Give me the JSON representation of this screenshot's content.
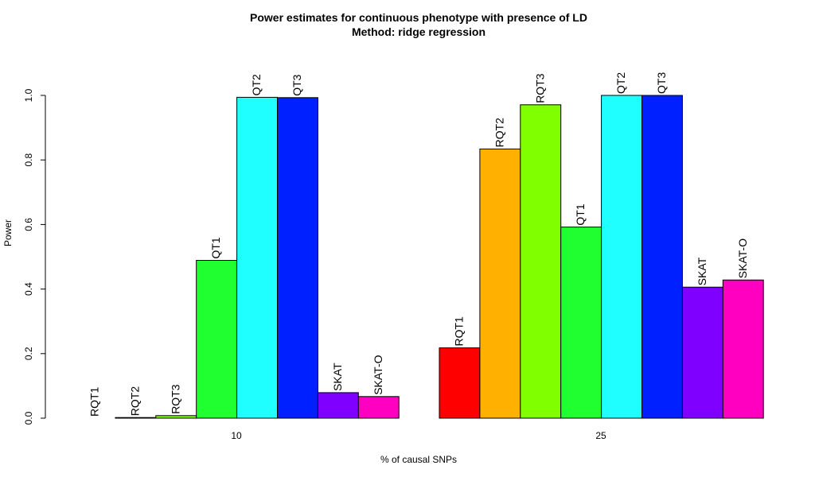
{
  "chart_data": {
    "type": "bar",
    "title": "Power estimates for continuous phenotype with presence of LD",
    "subtitle": "Method: ridge regression",
    "xlabel": "% of causal SNPs",
    "ylabel": "Power",
    "ylim": [
      0,
      1.0
    ],
    "yticks": [
      "0.0",
      "0.2",
      "0.4",
      "0.6",
      "0.8",
      "1.0"
    ],
    "grid": false,
    "categories": [
      "10",
      "25"
    ],
    "series": [
      {
        "name": "RQT1",
        "color": "#FF0000",
        "values": [
          0.0,
          0.218
        ]
      },
      {
        "name": "RQT2",
        "color": "#FFB000",
        "values": [
          0.002,
          0.834
        ]
      },
      {
        "name": "RQT3",
        "color": "#80FF00",
        "values": [
          0.008,
          0.971
        ]
      },
      {
        "name": "QT1",
        "color": "#20FF30",
        "values": [
          0.489,
          0.592
        ]
      },
      {
        "name": "QT2",
        "color": "#20FFFF",
        "values": [
          0.994,
          1.0
        ]
      },
      {
        "name": "QT3",
        "color": "#0020FF",
        "values": [
          0.993,
          1.0
        ]
      },
      {
        "name": "SKAT",
        "color": "#8000FF",
        "values": [
          0.079,
          0.406
        ]
      },
      {
        "name": "SKAT-O",
        "color": "#FF00C0",
        "values": [
          0.067,
          0.428
        ]
      }
    ]
  }
}
